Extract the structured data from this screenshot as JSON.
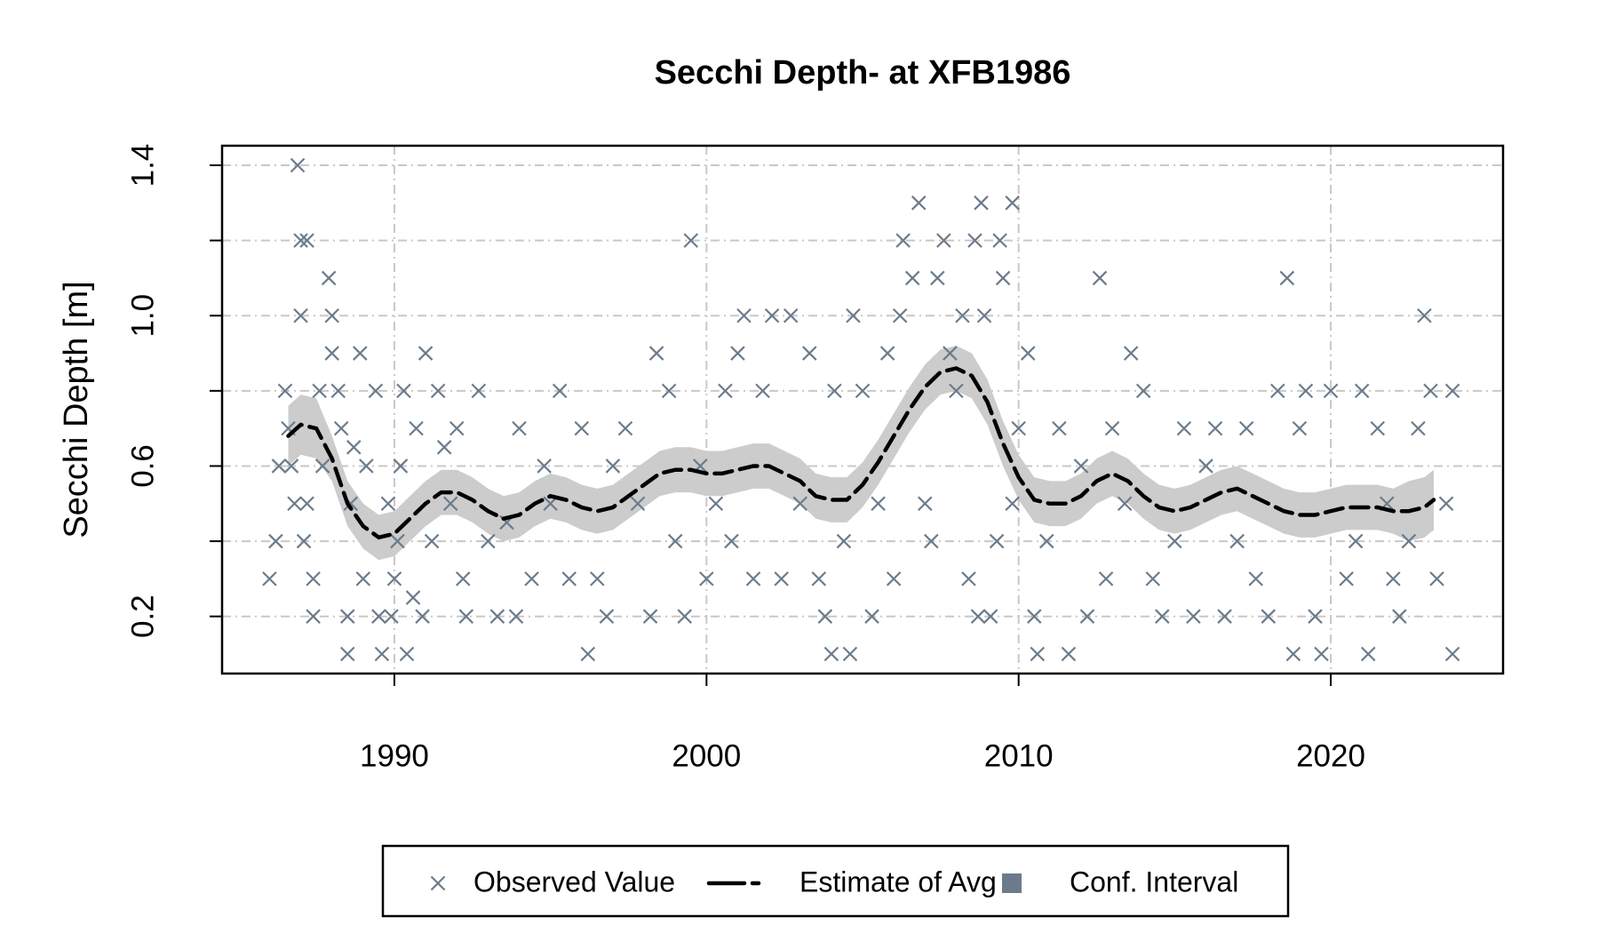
{
  "chart_data": {
    "type": "scatter",
    "title": "Secchi Depth- at XFB1986",
    "ylabel": "Secchi Depth [m]",
    "xlim": [
      1984.48,
      2025.52
    ],
    "ylim": [
      0.048,
      1.452
    ],
    "xticks": [
      1990,
      2000,
      2010,
      2020
    ],
    "yticks": [
      0.2,
      0.6,
      {
        "value": 1,
        "label": "1.0"
      },
      1.4
    ],
    "minor_yticks": [
      0.4,
      0.8,
      1.2
    ],
    "grid": true,
    "legend": "bottom",
    "series": [
      {
        "name": "Observed Value",
        "type": "scatter",
        "marker": "x",
        "color": "#6c7b8b",
        "x": [
          1986.0,
          1986.2,
          1986.3,
          1986.5,
          1986.6,
          1986.7,
          1986.8,
          1986.9,
          1987.0,
          1987.0,
          1987.2,
          1987.1,
          1987.2,
          1987.4,
          1987.4,
          1987.6,
          1987.7,
          1987.9,
          1988.0,
          1988.0,
          1988.2,
          1988.3,
          1988.5,
          1988.5,
          1988.6,
          1988.7,
          1988.9,
          1989.0,
          1989.1,
          1989.4,
          1989.5,
          1989.6,
          1989.8,
          1989.9,
          1990.0,
          1990.1,
          1990.2,
          1990.3,
          1990.4,
          1990.6,
          1990.7,
          1990.9,
          1991.0,
          1991.2,
          1991.4,
          1991.6,
          1991.8,
          1992.0,
          1992.2,
          1992.3,
          1992.7,
          1993.0,
          1993.3,
          1993.6,
          1993.9,
          1994.0,
          1994.4,
          1994.8,
          1995.0,
          1995.3,
          1995.6,
          1996.0,
          1996.2,
          1996.5,
          1996.8,
          1997.0,
          1997.4,
          1997.8,
          1998.2,
          1998.4,
          1998.8,
          1999.0,
          1999.3,
          1999.5,
          1999.8,
          2000.0,
          2000.3,
          2000.6,
          2000.8,
          2001.0,
          2001.2,
          2001.5,
          2001.8,
          2002.1,
          2002.4,
          2002.7,
          2003.0,
          2003.3,
          2003.6,
          2003.8,
          2004.0,
          2004.1,
          2004.4,
          2004.6,
          2004.7,
          2005.0,
          2005.3,
          2005.5,
          2005.8,
          2006.0,
          2006.2,
          2006.3,
          2006.6,
          2006.8,
          2007.0,
          2007.2,
          2007.4,
          2007.6,
          2007.8,
          2008.0,
          2008.2,
          2008.4,
          2008.6,
          2008.7,
          2008.8,
          2008.9,
          2009.1,
          2009.3,
          2009.4,
          2009.5,
          2009.8,
          2009.8,
          2010.0,
          2010.3,
          2010.5,
          2010.6,
          2010.9,
          2011.3,
          2011.6,
          2012.0,
          2012.2,
          2012.6,
          2012.8,
          2013.0,
          2013.4,
          2013.6,
          2014.0,
          2014.3,
          2014.6,
          2015.0,
          2015.3,
          2015.6,
          2016.0,
          2016.3,
          2016.6,
          2017.0,
          2017.3,
          2017.6,
          2018.0,
          2018.3,
          2018.6,
          2018.8,
          2019.0,
          2019.2,
          2019.5,
          2019.7,
          2020.0,
          2020.5,
          2020.8,
          2021.0,
          2021.2,
          2021.5,
          2021.8,
          2022.0,
          2022.2,
          2022.5,
          2022.8,
          2023.0,
          2023.2,
          2023.4,
          2023.7,
          2023.9,
          2023.9
        ],
        "values": [
          0.3,
          0.4,
          0.6,
          0.8,
          0.7,
          0.6,
          0.5,
          1.4,
          1.0,
          1.2,
          1.2,
          0.4,
          0.5,
          0.3,
          0.2,
          0.8,
          0.6,
          1.1,
          1.0,
          0.9,
          0.8,
          0.7,
          0.2,
          0.1,
          0.5,
          0.65,
          0.9,
          0.3,
          0.6,
          0.8,
          0.2,
          0.1,
          0.5,
          0.2,
          0.3,
          0.4,
          0.6,
          0.8,
          0.1,
          0.25,
          0.7,
          0.2,
          0.9,
          0.4,
          0.8,
          0.65,
          0.5,
          0.7,
          0.3,
          0.2,
          0.8,
          0.4,
          0.2,
          0.45,
          0.2,
          0.7,
          0.3,
          0.6,
          0.5,
          0.8,
          0.3,
          0.7,
          0.1,
          0.3,
          0.2,
          0.6,
          0.7,
          0.5,
          0.2,
          0.9,
          0.8,
          0.4,
          0.2,
          1.2,
          0.6,
          0.3,
          0.5,
          0.8,
          0.4,
          0.9,
          1.0,
          0.3,
          0.8,
          1.0,
          0.3,
          1.0,
          0.5,
          0.9,
          0.3,
          0.2,
          0.1,
          0.8,
          0.4,
          0.1,
          1.0,
          0.8,
          0.2,
          0.5,
          0.9,
          0.3,
          1.0,
          1.2,
          1.1,
          1.3,
          0.5,
          0.4,
          1.1,
          1.2,
          0.9,
          0.8,
          1.0,
          0.3,
          1.2,
          0.2,
          1.3,
          1.0,
          0.2,
          0.4,
          1.2,
          1.1,
          0.5,
          1.3,
          0.7,
          0.9,
          0.2,
          0.1,
          0.4,
          0.7,
          0.1,
          0.6,
          0.2,
          1.1,
          0.3,
          0.7,
          0.5,
          0.9,
          0.8,
          0.3,
          0.2,
          0.4,
          0.7,
          0.2,
          0.6,
          0.7,
          0.2,
          0.4,
          0.7,
          0.3,
          0.2,
          0.8,
          1.1,
          0.1,
          0.7,
          0.8,
          0.2,
          0.1,
          0.8,
          0.3,
          0.4,
          0.8,
          0.1,
          0.7,
          0.5,
          0.3,
          0.2,
          0.4,
          0.7,
          1.0,
          0.8,
          0.3,
          0.5,
          0.8,
          0.1
        ]
      },
      {
        "name": "Estimate of Avg",
        "type": "line",
        "dash": true,
        "color": "#000000",
        "x": [
          1986.6,
          1987,
          1987.5,
          1988,
          1988.5,
          1989,
          1989.5,
          1990,
          1990.5,
          1991,
          1991.5,
          1992,
          1992.5,
          1993,
          1993.5,
          1994,
          1994.5,
          1995,
          1995.5,
          1996,
          1996.5,
          1997,
          1997.5,
          1998,
          1998.5,
          1999,
          1999.5,
          2000,
          2000.5,
          2001,
          2001.5,
          2002,
          2002.5,
          2003,
          2003.5,
          2004,
          2004.5,
          2005,
          2005.5,
          2006,
          2006.5,
          2007,
          2007.5,
          2008,
          2008.5,
          2009,
          2009.5,
          2010,
          2010.5,
          2011,
          2011.5,
          2012,
          2012.5,
          2013,
          2013.5,
          2014,
          2014.5,
          2015,
          2015.5,
          2016,
          2016.5,
          2017,
          2017.5,
          2018,
          2018.5,
          2019,
          2019.5,
          2020,
          2020.5,
          2021,
          2021.5,
          2022,
          2022.5,
          2023,
          2023.3
        ],
        "values": [
          0.68,
          0.71,
          0.7,
          0.62,
          0.5,
          0.44,
          0.41,
          0.42,
          0.46,
          0.5,
          0.53,
          0.53,
          0.51,
          0.48,
          0.46,
          0.47,
          0.5,
          0.52,
          0.51,
          0.49,
          0.48,
          0.49,
          0.52,
          0.55,
          0.58,
          0.59,
          0.59,
          0.58,
          0.58,
          0.59,
          0.6,
          0.6,
          0.58,
          0.56,
          0.52,
          0.51,
          0.51,
          0.55,
          0.61,
          0.68,
          0.75,
          0.81,
          0.85,
          0.86,
          0.84,
          0.77,
          0.66,
          0.57,
          0.51,
          0.5,
          0.5,
          0.52,
          0.56,
          0.58,
          0.56,
          0.52,
          0.49,
          0.48,
          0.49,
          0.51,
          0.53,
          0.54,
          0.52,
          0.5,
          0.48,
          0.47,
          0.47,
          0.48,
          0.49,
          0.49,
          0.49,
          0.48,
          0.48,
          0.49,
          0.51
        ]
      },
      {
        "name": "Conf. Interval",
        "type": "band",
        "color": "#cccccc",
        "legend_color": "#6c7b8b",
        "x": [
          1986.6,
          1987,
          1987.5,
          1988,
          1988.5,
          1989,
          1989.5,
          1990,
          1990.5,
          1991,
          1991.5,
          1992,
          1992.5,
          1993,
          1993.5,
          1994,
          1994.5,
          1995,
          1995.5,
          1996,
          1996.5,
          1997,
          1997.5,
          1998,
          1998.5,
          1999,
          1999.5,
          2000,
          2000.5,
          2001,
          2001.5,
          2002,
          2002.5,
          2003,
          2003.5,
          2004,
          2004.5,
          2005,
          2005.5,
          2006,
          2006.5,
          2007,
          2007.5,
          2008,
          2008.5,
          2009,
          2009.5,
          2010,
          2010.5,
          2011,
          2011.5,
          2012,
          2012.5,
          2013,
          2013.5,
          2014,
          2014.5,
          2015,
          2015.5,
          2016,
          2016.5,
          2017,
          2017.5,
          2018,
          2018.5,
          2019,
          2019.5,
          2020,
          2020.5,
          2021,
          2021.5,
          2022,
          2022.5,
          2023,
          2023.3
        ],
        "lower": [
          0.6,
          0.63,
          0.62,
          0.56,
          0.44,
          0.38,
          0.35,
          0.36,
          0.4,
          0.44,
          0.47,
          0.47,
          0.45,
          0.42,
          0.4,
          0.41,
          0.44,
          0.46,
          0.45,
          0.43,
          0.42,
          0.43,
          0.46,
          0.49,
          0.52,
          0.53,
          0.53,
          0.52,
          0.52,
          0.53,
          0.54,
          0.54,
          0.52,
          0.5,
          0.46,
          0.45,
          0.45,
          0.49,
          0.55,
          0.62,
          0.69,
          0.75,
          0.79,
          0.8,
          0.78,
          0.71,
          0.6,
          0.51,
          0.45,
          0.44,
          0.44,
          0.46,
          0.5,
          0.52,
          0.5,
          0.46,
          0.43,
          0.42,
          0.43,
          0.45,
          0.47,
          0.48,
          0.46,
          0.44,
          0.42,
          0.41,
          0.41,
          0.42,
          0.43,
          0.43,
          0.43,
          0.42,
          0.4,
          0.41,
          0.43
        ],
        "upper": [
          0.76,
          0.79,
          0.78,
          0.68,
          0.56,
          0.5,
          0.47,
          0.48,
          0.52,
          0.56,
          0.59,
          0.59,
          0.57,
          0.54,
          0.52,
          0.53,
          0.56,
          0.58,
          0.57,
          0.55,
          0.54,
          0.55,
          0.58,
          0.61,
          0.64,
          0.65,
          0.65,
          0.64,
          0.64,
          0.65,
          0.66,
          0.66,
          0.64,
          0.62,
          0.58,
          0.57,
          0.57,
          0.61,
          0.67,
          0.74,
          0.81,
          0.87,
          0.91,
          0.92,
          0.9,
          0.83,
          0.72,
          0.63,
          0.57,
          0.56,
          0.56,
          0.58,
          0.62,
          0.64,
          0.62,
          0.58,
          0.55,
          0.54,
          0.55,
          0.57,
          0.59,
          0.6,
          0.58,
          0.56,
          0.54,
          0.53,
          0.53,
          0.54,
          0.55,
          0.55,
          0.55,
          0.54,
          0.56,
          0.57,
          0.59
        ]
      }
    ]
  }
}
